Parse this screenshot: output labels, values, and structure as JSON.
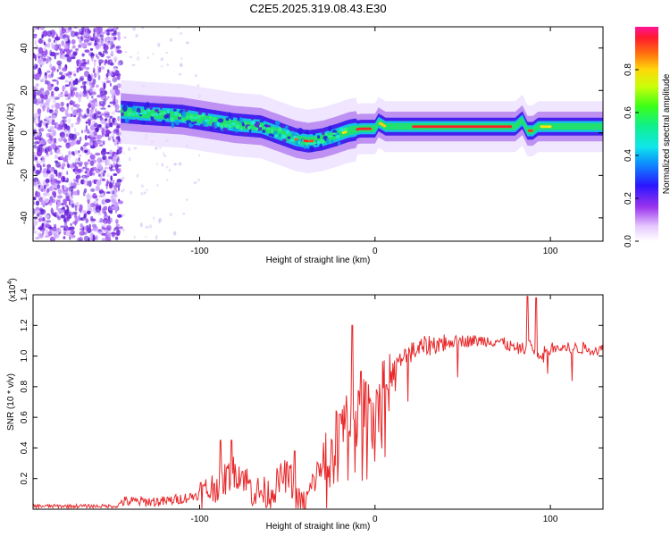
{
  "title": "C2E5.2025.319.08.43.E30",
  "chart_data": [
    {
      "type": "heatmap",
      "panel": "spectrogram",
      "xlabel": "Height of straight line (km)",
      "ylabel": "Frequency (Hz)",
      "xlim": [
        -195,
        130
      ],
      "ylim": [
        -51,
        50
      ],
      "xticks": [
        -100,
        0,
        100
      ],
      "xtick_labels": [
        "-100",
        "0",
        "100"
      ],
      "yticks": [
        -40,
        -20,
        0,
        20,
        40
      ],
      "ytick_labels": [
        "-40",
        "-20",
        "0",
        "20",
        "40"
      ],
      "noise_region_km": [
        -195,
        -145
      ],
      "ridge": {
        "x": [
          -145,
          -130,
          -110,
          -95,
          -80,
          -65,
          -55,
          -45,
          -38,
          -30,
          -22,
          -15,
          -8,
          0,
          2,
          6,
          10,
          20,
          40,
          60,
          80,
          84,
          87,
          90,
          93,
          100,
          130
        ],
        "y": [
          10,
          9,
          8,
          6,
          4,
          3,
          0,
          -3,
          -4,
          -3,
          -1,
          1,
          2,
          2,
          5,
          3,
          3,
          3,
          3,
          3,
          3,
          6,
          1,
          1,
          3,
          3,
          3
        ]
      },
      "colorbar": {
        "label": "Normalized spectral amplitude",
        "range": [
          0,
          1
        ],
        "ticks": [
          0.0,
          0.2,
          0.4,
          0.6,
          0.8
        ],
        "tick_labels": [
          "0.0",
          "0.2",
          "0.4",
          "0.6",
          "0.8"
        ]
      }
    },
    {
      "type": "line",
      "panel": "snr",
      "xlabel": "Height of straight line (km)",
      "ylabel": "SNR (10 * v/v)",
      "scale_label": "(x10",
      "scale_exp": "4",
      "scale_close": ")",
      "xlim": [
        -195,
        130
      ],
      "ylim": [
        0,
        1.4
      ],
      "xticks": [
        -100,
        0,
        100
      ],
      "xtick_labels": [
        "-100",
        "0",
        "100"
      ],
      "yticks": [
        0.2,
        0.4,
        0.6,
        0.8,
        1.0,
        1.2,
        1.4
      ],
      "ytick_labels": [
        "0.2",
        "0.4",
        "0.6",
        "0.8",
        "1.0",
        "1.2",
        "1.4"
      ],
      "color": "#e8282a",
      "envelope": {
        "x": [
          -195,
          -146,
          -145,
          -120,
          -105,
          -95,
          -85,
          -80,
          -75,
          -70,
          -60,
          -52,
          -48,
          -45,
          -40,
          -35,
          -30,
          -25,
          -20,
          -15,
          -10,
          -5,
          0,
          5,
          10,
          15,
          20,
          30,
          40,
          50,
          60,
          70,
          80,
          85,
          88,
          92,
          100,
          110,
          120,
          130
        ],
        "y": [
          0.02,
          0.02,
          0.05,
          0.05,
          0.08,
          0.12,
          0.2,
          0.25,
          0.22,
          0.12,
          0.1,
          0.22,
          0.2,
          0.05,
          0.02,
          0.18,
          0.3,
          0.35,
          0.5,
          0.55,
          0.6,
          0.65,
          0.7,
          0.8,
          0.9,
          0.97,
          1.02,
          1.07,
          1.09,
          1.1,
          1.1,
          1.1,
          1.05,
          1.05,
          1.1,
          1.0,
          1.05,
          1.05,
          1.05,
          1.04
        ]
      },
      "peaks": [
        {
          "x": -88,
          "y": 0.45
        },
        {
          "x": -82,
          "y": 0.45
        },
        {
          "x": -46,
          "y": 0.38
        },
        {
          "x": -20,
          "y": 0.62
        },
        {
          "x": -13,
          "y": 1.2
        },
        {
          "x": -8,
          "y": 0.9
        },
        {
          "x": 87,
          "y": 1.39
        },
        {
          "x": 92,
          "y": 1.38
        }
      ]
    }
  ]
}
